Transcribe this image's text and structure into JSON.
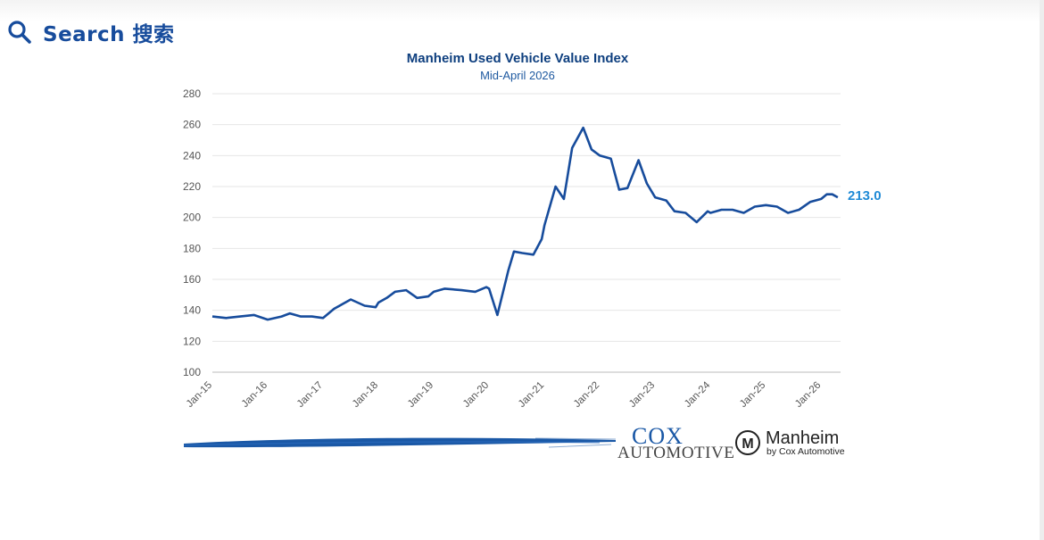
{
  "search": {
    "label": "Search 搜索",
    "icon": "search-icon",
    "color": "#174c9c"
  },
  "chart_data": {
    "type": "line",
    "title": "Manheim Used Vehicle Value Index",
    "subtitle": "Mid-April 2026",
    "xlabel": "",
    "ylabel": "",
    "ylim": [
      100,
      280
    ],
    "yticks": [
      100,
      120,
      140,
      160,
      180,
      200,
      220,
      240,
      260,
      280
    ],
    "xtick_labels": [
      "Jan-15",
      "Jan-16",
      "Jan-17",
      "Jan-18",
      "Jan-19",
      "Jan-20",
      "Jan-21",
      "Jan-22",
      "Jan-23",
      "Jan-24",
      "Jan-25",
      "Jan-26"
    ],
    "grid": true,
    "line_color": "#174c9c",
    "end_label": "213.0",
    "end_label_color": "#1f8ad6",
    "series": [
      {
        "name": "Manheim Used Vehicle Value Index",
        "x": [
          2015.0,
          2015.25,
          2015.5,
          2015.75,
          2016.0,
          2016.25,
          2016.4,
          2016.6,
          2016.8,
          2017.0,
          2017.2,
          2017.5,
          2017.75,
          2017.95,
          2018.0,
          2018.15,
          2018.3,
          2018.5,
          2018.7,
          2018.9,
          2019.0,
          2019.2,
          2019.5,
          2019.75,
          2019.95,
          2020.0,
          2020.15,
          2020.35,
          2020.45,
          2020.6,
          2020.8,
          2020.95,
          2021.0,
          2021.2,
          2021.35,
          2021.5,
          2021.7,
          2021.85,
          2022.0,
          2022.2,
          2022.35,
          2022.5,
          2022.7,
          2022.85,
          2023.0,
          2023.2,
          2023.35,
          2023.55,
          2023.75,
          2023.95,
          2024.0,
          2024.2,
          2024.4,
          2024.6,
          2024.8,
          2025.0,
          2025.2,
          2025.4,
          2025.6,
          2025.8,
          2026.0,
          2026.1,
          2026.2,
          2026.3
        ],
        "values": [
          136,
          135,
          136,
          137,
          134,
          136,
          138,
          136,
          136,
          135,
          141,
          147,
          143,
          142,
          145,
          148,
          152,
          153,
          148,
          149,
          152,
          154,
          153,
          152,
          155,
          154,
          137,
          166,
          178,
          177,
          176,
          186,
          195,
          220,
          212,
          245,
          258,
          244,
          240,
          238,
          218,
          219,
          237,
          222,
          213,
          211,
          204,
          203,
          197,
          204,
          203,
          205,
          205,
          203,
          207,
          208,
          207,
          203,
          205,
          210,
          212,
          215,
          215,
          213
        ]
      }
    ]
  },
  "logos": {
    "cox_line1": "COX",
    "cox_line2": "AUTOMOTIVE",
    "cox_color": "#1a58a6",
    "manheim_line1": "Manheim",
    "manheim_line2": "by Cox Automotive",
    "manheim_mark": "M"
  }
}
